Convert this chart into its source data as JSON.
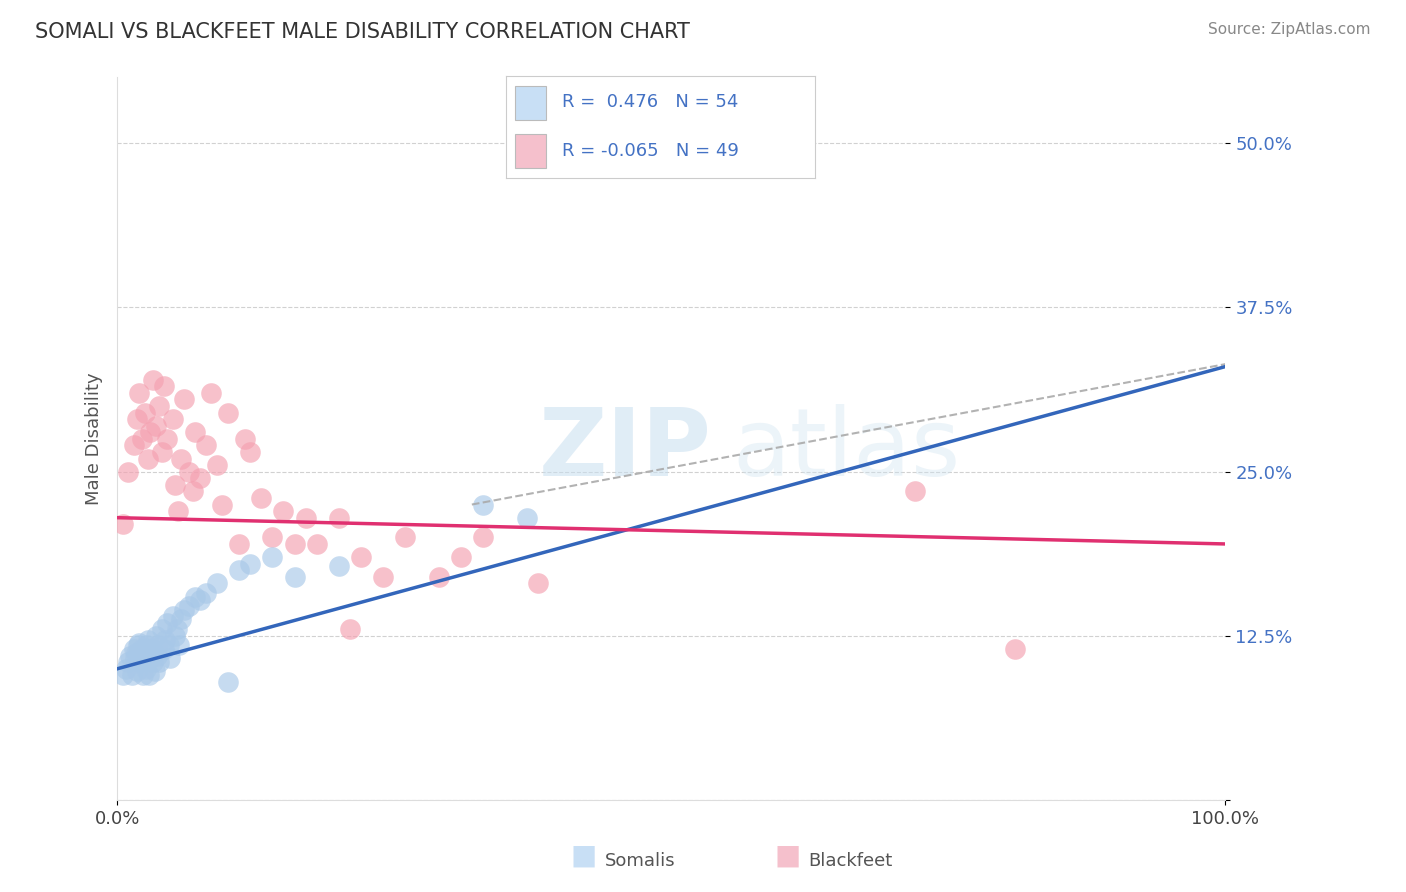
{
  "title": "SOMALI VS BLACKFEET MALE DISABILITY CORRELATION CHART",
  "source": "Source: ZipAtlas.com",
  "ylabel": "Male Disability",
  "xlim": [
    0.0,
    1.0
  ],
  "ylim": [
    0.0,
    0.55
  ],
  "somali_R": 0.476,
  "somali_N": 54,
  "blackfeet_R": -0.065,
  "blackfeet_N": 49,
  "somali_color": "#a8c8e8",
  "blackfeet_color": "#f4a0b0",
  "somali_line_color": "#3366bb",
  "blackfeet_line_color": "#e03070",
  "dash_line_color": "#aaaaaa",
  "background_color": "#ffffff",
  "grid_color": "#cccccc",
  "somali_scatter_x": [
    0.005,
    0.008,
    0.01,
    0.012,
    0.013,
    0.015,
    0.016,
    0.017,
    0.018,
    0.019,
    0.02,
    0.021,
    0.022,
    0.023,
    0.024,
    0.025,
    0.026,
    0.027,
    0.028,
    0.029,
    0.03,
    0.031,
    0.032,
    0.033,
    0.034,
    0.035,
    0.036,
    0.037,
    0.038,
    0.04,
    0.042,
    0.043,
    0.045,
    0.047,
    0.048,
    0.05,
    0.052,
    0.054,
    0.056,
    0.058,
    0.06,
    0.065,
    0.07,
    0.075,
    0.08,
    0.09,
    0.1,
    0.11,
    0.12,
    0.14,
    0.16,
    0.2,
    0.33,
    0.37
  ],
  "somali_scatter_y": [
    0.095,
    0.1,
    0.105,
    0.11,
    0.095,
    0.115,
    0.108,
    0.112,
    0.098,
    0.118,
    0.12,
    0.105,
    0.115,
    0.095,
    0.108,
    0.112,
    0.1,
    0.118,
    0.122,
    0.095,
    0.108,
    0.115,
    0.105,
    0.112,
    0.098,
    0.125,
    0.11,
    0.118,
    0.105,
    0.13,
    0.115,
    0.122,
    0.135,
    0.118,
    0.108,
    0.14,
    0.125,
    0.13,
    0.118,
    0.138,
    0.145,
    0.148,
    0.155,
    0.152,
    0.158,
    0.165,
    0.09,
    0.175,
    0.18,
    0.185,
    0.17,
    0.178,
    0.225,
    0.215
  ],
  "blackfeet_scatter_x": [
    0.005,
    0.01,
    0.015,
    0.018,
    0.02,
    0.022,
    0.025,
    0.028,
    0.03,
    0.032,
    0.035,
    0.038,
    0.04,
    0.042,
    0.045,
    0.05,
    0.052,
    0.055,
    0.058,
    0.06,
    0.065,
    0.068,
    0.07,
    0.075,
    0.08,
    0.085,
    0.09,
    0.095,
    0.1,
    0.11,
    0.115,
    0.12,
    0.13,
    0.14,
    0.15,
    0.16,
    0.17,
    0.18,
    0.2,
    0.21,
    0.22,
    0.24,
    0.26,
    0.29,
    0.31,
    0.33,
    0.38,
    0.72,
    0.81
  ],
  "blackfeet_scatter_y": [
    0.21,
    0.25,
    0.27,
    0.29,
    0.31,
    0.275,
    0.295,
    0.26,
    0.28,
    0.32,
    0.285,
    0.3,
    0.265,
    0.315,
    0.275,
    0.29,
    0.24,
    0.22,
    0.26,
    0.305,
    0.25,
    0.235,
    0.28,
    0.245,
    0.27,
    0.31,
    0.255,
    0.225,
    0.295,
    0.195,
    0.275,
    0.265,
    0.23,
    0.2,
    0.22,
    0.195,
    0.215,
    0.195,
    0.215,
    0.13,
    0.185,
    0.17,
    0.2,
    0.17,
    0.185,
    0.2,
    0.165,
    0.235,
    0.115
  ],
  "watermark_zip": "ZIP",
  "watermark_atlas": "atlas",
  "legend_box_color_somali": "#c8dff5",
  "legend_box_color_blackfeet": "#f5c0cc"
}
